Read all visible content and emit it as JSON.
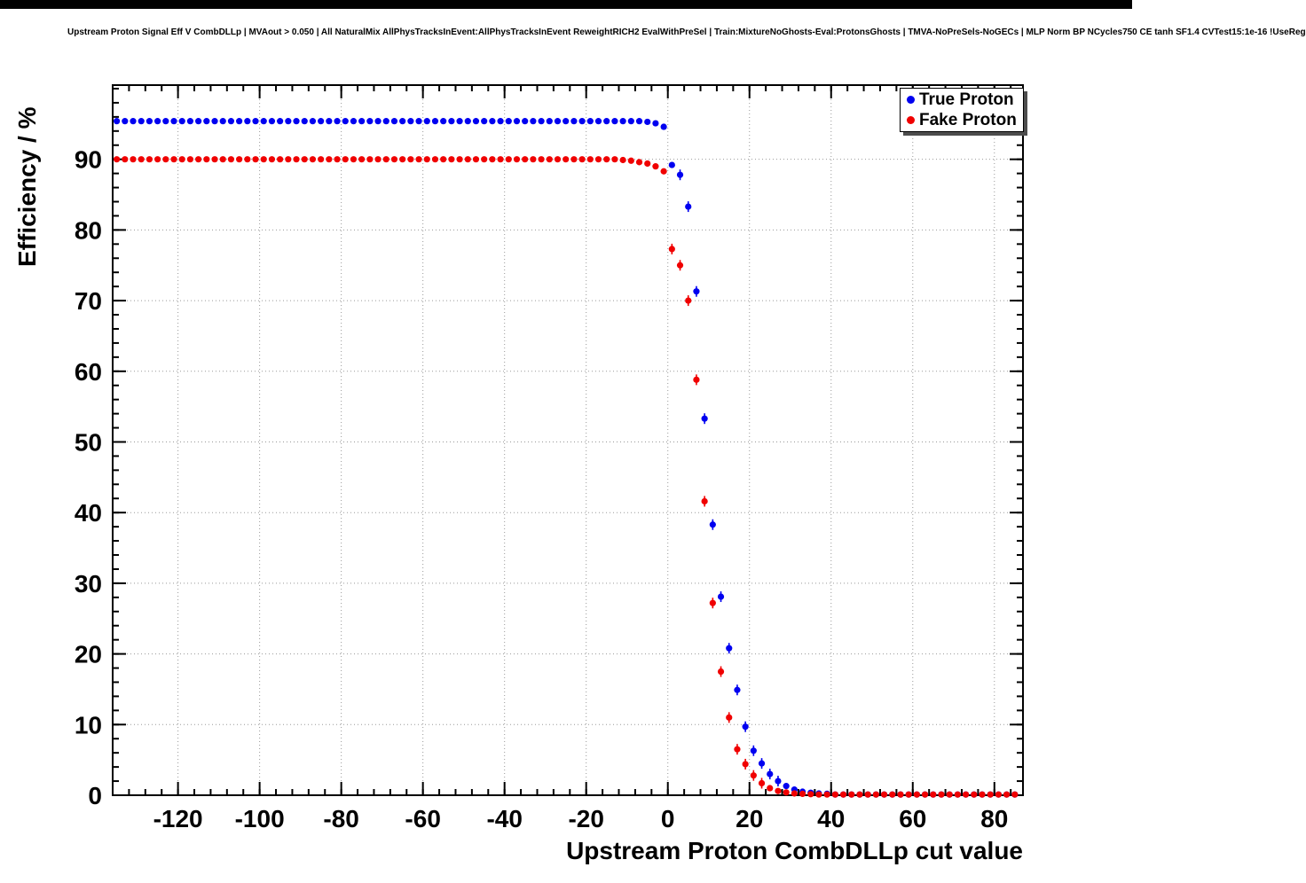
{
  "chart_data": {
    "type": "scatter",
    "title": "Upstream Proton Signal Eff V CombDLLp | MVAout > 0.050 | All NaturalMix AllPhysTracksInEvent:AllPhysTracksInEvent ReweightRICH2 EvalWithPreSel | Train:MixtureNoGhosts-Eval:ProtonsGhosts | TMVA-NoPreSels-NoGECs | MLP Norm BP NCycles750 CE tanh SF1.4 CVTest15:1e-16 !UseReg",
    "xlabel": "Upstream Proton CombDLLp cut value",
    "ylabel": "Efficiency / %",
    "xlim": [
      -136,
      87
    ],
    "ylim": [
      0,
      100.5
    ],
    "x_ticks": [
      -120,
      -100,
      -80,
      -60,
      -40,
      -20,
      0,
      20,
      40,
      60,
      80
    ],
    "y_ticks": [
      0,
      10,
      20,
      30,
      40,
      50,
      60,
      70,
      80,
      90
    ],
    "x_minor_step": 4,
    "y_minor_step": 2,
    "grid": true,
    "legend_position": "top-right",
    "x": [
      -135,
      -133,
      -131,
      -129,
      -127,
      -125,
      -123,
      -121,
      -119,
      -117,
      -115,
      -113,
      -111,
      -109,
      -107,
      -105,
      -103,
      -101,
      -99,
      -97,
      -95,
      -93,
      -91,
      -89,
      -87,
      -85,
      -83,
      -81,
      -79,
      -77,
      -75,
      -73,
      -71,
      -69,
      -67,
      -65,
      -63,
      -61,
      -59,
      -57,
      -55,
      -53,
      -51,
      -49,
      -47,
      -45,
      -43,
      -41,
      -39,
      -37,
      -35,
      -33,
      -31,
      -29,
      -27,
      -25,
      -23,
      -21,
      -19,
      -17,
      -15,
      -13,
      -11,
      -9,
      -7,
      -5,
      -3,
      -1,
      1,
      3,
      5,
      7,
      9,
      11,
      13,
      15,
      17,
      19,
      21,
      23,
      25,
      27,
      29,
      31,
      33,
      35,
      37,
      39,
      41,
      43,
      45,
      47,
      49,
      51,
      53,
      55,
      57,
      59,
      61,
      63,
      65,
      67,
      69,
      71,
      73,
      75,
      77,
      79,
      81,
      83,
      85
    ],
    "series": [
      {
        "name": "True Proton",
        "color": "#0000f0",
        "y": [
          95.4,
          95.4,
          95.4,
          95.4,
          95.4,
          95.4,
          95.4,
          95.4,
          95.4,
          95.4,
          95.4,
          95.4,
          95.4,
          95.4,
          95.4,
          95.4,
          95.4,
          95.4,
          95.4,
          95.4,
          95.4,
          95.4,
          95.4,
          95.4,
          95.4,
          95.4,
          95.4,
          95.4,
          95.4,
          95.4,
          95.4,
          95.4,
          95.4,
          95.4,
          95.4,
          95.4,
          95.4,
          95.4,
          95.4,
          95.4,
          95.4,
          95.4,
          95.4,
          95.4,
          95.4,
          95.4,
          95.4,
          95.4,
          95.4,
          95.4,
          95.4,
          95.4,
          95.4,
          95.4,
          95.4,
          95.4,
          95.4,
          95.4,
          95.4,
          95.4,
          95.4,
          95.4,
          95.4,
          95.4,
          95.4,
          95.3,
          95.1,
          94.6,
          89.2,
          87.8,
          83.3,
          71.3,
          53.3,
          38.3,
          28.1,
          20.8,
          14.9,
          9.7,
          6.3,
          4.5,
          3.0,
          2.0,
          1.3,
          0.8,
          0.5,
          0.35,
          0.25,
          0.2,
          0.1,
          0.1,
          0.1,
          0.1,
          0.1,
          0.1,
          0.1,
          0.1,
          0.1,
          0.1,
          0.1,
          0.1,
          0.1,
          0.1,
          0.1,
          0.1,
          0.1,
          0.1,
          0.1,
          0.1,
          0.1,
          0.1,
          0.1
        ]
      },
      {
        "name": "Fake Proton",
        "color": "#f00000",
        "y": [
          90.0,
          90.0,
          90.0,
          90.0,
          90.0,
          90.0,
          90.0,
          90.0,
          90.0,
          90.0,
          90.0,
          90.0,
          90.0,
          90.0,
          90.0,
          90.0,
          90.0,
          90.0,
          90.0,
          90.0,
          90.0,
          90.0,
          90.0,
          90.0,
          90.0,
          90.0,
          90.0,
          90.0,
          90.0,
          90.0,
          90.0,
          90.0,
          90.0,
          90.0,
          90.0,
          90.0,
          90.0,
          90.0,
          90.0,
          90.0,
          90.0,
          90.0,
          90.0,
          90.0,
          90.0,
          90.0,
          90.0,
          90.0,
          90.0,
          90.0,
          90.0,
          90.0,
          90.0,
          90.0,
          90.0,
          90.0,
          90.0,
          90.0,
          90.0,
          90.0,
          90.0,
          90.0,
          89.9,
          89.8,
          89.6,
          89.4,
          89.0,
          88.3,
          77.3,
          75.0,
          70.0,
          58.8,
          41.6,
          27.2,
          17.5,
          11.0,
          6.5,
          4.4,
          2.8,
          1.7,
          1.0,
          0.6,
          0.4,
          0.25,
          0.2,
          0.15,
          0.1,
          0.1,
          0.1,
          0.1,
          0.1,
          0.1,
          0.1,
          0.1,
          0.1,
          0.1,
          0.1,
          0.1,
          0.1,
          0.1,
          0.1,
          0.1,
          0.1,
          0.1,
          0.1,
          0.1,
          0.1,
          0.1,
          0.1,
          0.1,
          0.1
        ]
      }
    ]
  }
}
